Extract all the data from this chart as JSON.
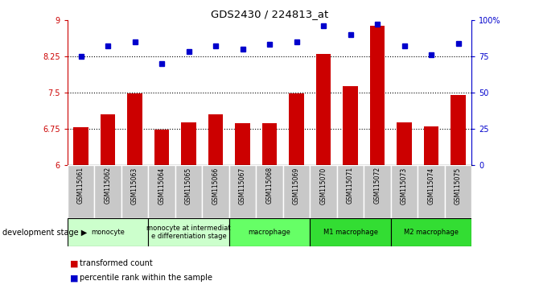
{
  "title": "GDS2430 / 224813_at",
  "samples": [
    "GSM115061",
    "GSM115062",
    "GSM115063",
    "GSM115064",
    "GSM115065",
    "GSM115066",
    "GSM115067",
    "GSM115068",
    "GSM115069",
    "GSM115070",
    "GSM115071",
    "GSM115072",
    "GSM115073",
    "GSM115074",
    "GSM115075"
  ],
  "bar_values": [
    6.78,
    7.05,
    7.48,
    6.73,
    6.88,
    7.05,
    6.87,
    6.87,
    7.48,
    8.3,
    7.63,
    8.88,
    6.88,
    6.8,
    7.45
  ],
  "dot_values": [
    75,
    82,
    85,
    70,
    78,
    82,
    80,
    83,
    85,
    96,
    90,
    97,
    82,
    76,
    84
  ],
  "bar_color": "#CC0000",
  "dot_color": "#0000CC",
  "ylim_left": [
    6.0,
    9.0
  ],
  "ylim_right": [
    0,
    100
  ],
  "yticks_left": [
    6.0,
    6.75,
    7.5,
    8.25,
    9.0
  ],
  "ytick_labels_left": [
    "6",
    "6.75",
    "7.5",
    "8.25",
    "9"
  ],
  "yticks_right": [
    0,
    25,
    50,
    75,
    100
  ],
  "ytick_labels_right": [
    "0",
    "25",
    "50",
    "75",
    "100%"
  ],
  "hlines": [
    6.75,
    7.5,
    8.25
  ],
  "bar_bottom": 6.0,
  "groups": [
    {
      "label": "monocyte",
      "start": 0,
      "end": 3,
      "color": "#ccffcc"
    },
    {
      "label": "monocyte at intermediat\ne differentiation stage",
      "start": 3,
      "end": 6,
      "color": "#ccffcc"
    },
    {
      "label": "macrophage",
      "start": 6,
      "end": 9,
      "color": "#66ff66"
    },
    {
      "label": "M1 macrophage",
      "start": 9,
      "end": 12,
      "color": "#33dd33"
    },
    {
      "label": "M2 macrophage",
      "start": 12,
      "end": 15,
      "color": "#33dd33"
    }
  ],
  "legend_items": [
    {
      "label": "transformed count",
      "color": "#CC0000"
    },
    {
      "label": "percentile rank within the sample",
      "color": "#0000CC"
    }
  ],
  "dev_stage_label": "development stage",
  "background_color": "#ffffff",
  "tick_color_left": "#CC0000",
  "tick_color_right": "#0000CC",
  "sample_box_color": "#c8c8c8",
  "sample_box_edge": "#ffffff"
}
